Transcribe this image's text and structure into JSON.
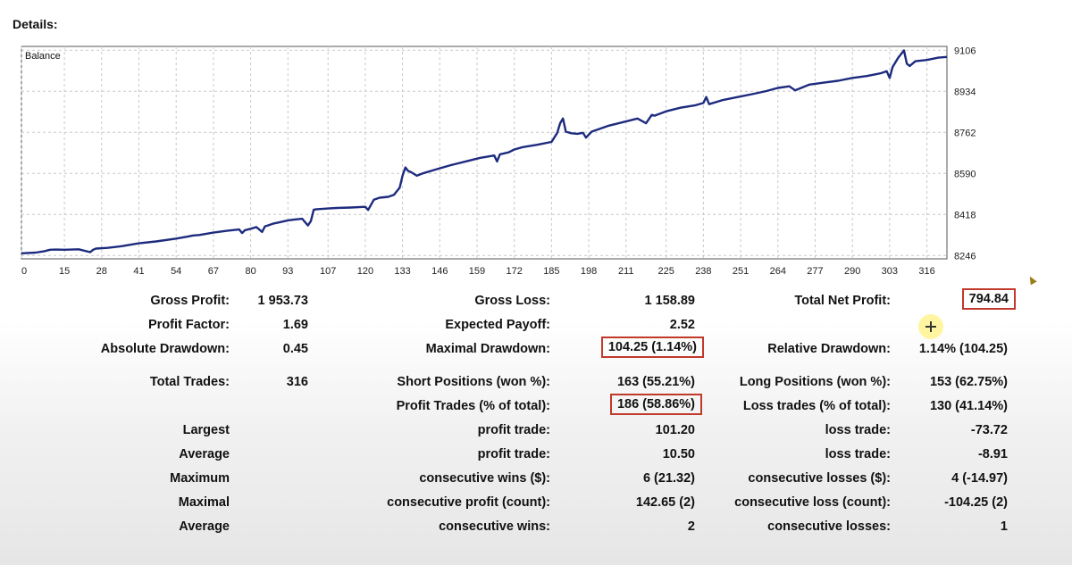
{
  "header": {
    "title": "Details:"
  },
  "chart_data": {
    "type": "line",
    "title": "Balance",
    "x_ticks": [
      0,
      15,
      28,
      41,
      54,
      67,
      80,
      93,
      107,
      120,
      133,
      146,
      159,
      172,
      185,
      198,
      211,
      225,
      238,
      251,
      264,
      277,
      290,
      303,
      316
    ],
    "y_ticks": [
      8246,
      8418,
      8590,
      8762,
      8934,
      9106
    ],
    "xlim": [
      0,
      323
    ],
    "ylim": [
      8232,
      9122
    ],
    "grid": true,
    "series": [
      {
        "color": "#1d2b7e",
        "x": [
          0,
          5,
          8,
          10,
          12,
          15,
          20,
          24,
          25,
          26,
          30,
          35,
          41,
          47,
          54,
          58,
          60,
          62,
          67,
          72,
          76,
          77,
          78,
          80,
          82,
          84,
          85,
          86,
          88,
          90,
          93,
          95,
          98,
          100,
          101,
          102,
          103,
          107,
          110,
          115,
          120,
          121,
          123,
          125,
          128,
          130,
          132,
          133,
          134,
          135,
          136,
          138,
          140,
          145,
          150,
          155,
          160,
          165,
          166,
          167,
          170,
          172,
          175,
          180,
          185,
          187,
          188,
          189,
          190,
          192,
          194,
          196,
          197,
          199,
          205,
          210,
          215,
          218,
          220,
          221,
          225,
          230,
          235,
          238,
          239,
          240,
          245,
          250,
          255,
          260,
          264,
          268,
          270,
          275,
          280,
          285,
          290,
          295,
          298,
          300,
          302,
          303,
          304,
          306,
          308,
          309,
          310,
          312,
          316,
          320,
          323
        ],
        "y": [
          8255,
          8258,
          8264,
          8270,
          8271,
          8270,
          8272,
          8260,
          8270,
          8275,
          8278,
          8285,
          8297,
          8305,
          8317,
          8325,
          8330,
          8332,
          8342,
          8350,
          8355,
          8340,
          8352,
          8358,
          8365,
          8345,
          8368,
          8372,
          8380,
          8385,
          8393,
          8396,
          8400,
          8372,
          8390,
          8438,
          8440,
          8443,
          8445,
          8447,
          8450,
          8437,
          8480,
          8488,
          8492,
          8500,
          8530,
          8580,
          8615,
          8600,
          8595,
          8580,
          8590,
          8608,
          8625,
          8640,
          8655,
          8665,
          8640,
          8670,
          8678,
          8690,
          8700,
          8710,
          8722,
          8760,
          8800,
          8820,
          8765,
          8758,
          8756,
          8760,
          8740,
          8765,
          8790,
          8805,
          8820,
          8800,
          8835,
          8832,
          8850,
          8865,
          8875,
          8885,
          8910,
          8880,
          8898,
          8910,
          8922,
          8935,
          8948,
          8955,
          8938,
          8962,
          8970,
          8978,
          8990,
          8998,
          9005,
          9010,
          9018,
          8990,
          9035,
          9075,
          9105,
          9050,
          9040,
          9060,
          9065,
          9075,
          9078
        ]
      }
    ]
  },
  "stats": {
    "gross_profit": {
      "label": "Gross Profit:",
      "value": "1 953.73"
    },
    "gross_loss": {
      "label": "Gross Loss:",
      "value": "1 158.89"
    },
    "total_net_profit": {
      "label": "Total Net Profit:",
      "value": "794.84"
    },
    "profit_factor": {
      "label": "Profit Factor:",
      "value": "1.69"
    },
    "expected_payoff": {
      "label": "Expected Payoff:",
      "value": "2.52"
    },
    "absolute_drawdown": {
      "label": "Absolute Drawdown:",
      "value": "0.45"
    },
    "maximal_drawdown": {
      "label": "Maximal Drawdown:",
      "value": "104.25 (1.14%)"
    },
    "relative_drawdown": {
      "label": "Relative Drawdown:",
      "value": "1.14% (104.25)"
    },
    "total_trades": {
      "label": "Total Trades:",
      "value": "316"
    },
    "short_positions": {
      "label": "Short Positions (won %):",
      "value": "163 (55.21%)"
    },
    "long_positions": {
      "label": "Long Positions (won %):",
      "value": "153 (62.75%)"
    },
    "profit_trades": {
      "label": "Profit Trades (% of total):",
      "value": "186 (58.86%)"
    },
    "loss_trades": {
      "label": "Loss trades (% of total):",
      "value": "130 (41.14%)"
    },
    "largest": {
      "group": "Largest",
      "profit_label": "profit trade:",
      "profit_value": "101.20",
      "loss_label": "loss trade:",
      "loss_value": "-73.72"
    },
    "average": {
      "group": "Average",
      "profit_label": "profit trade:",
      "profit_value": "10.50",
      "loss_label": "loss trade:",
      "loss_value": "-8.91"
    },
    "maximum": {
      "group": "Maximum",
      "profit_label": "consecutive wins ($):",
      "profit_value": "6 (21.32)",
      "loss_label": "consecutive losses ($):",
      "loss_value": "4 (-14.97)"
    },
    "maximal": {
      "group": "Maximal",
      "profit_label": "consecutive profit (count):",
      "profit_value": "142.65 (2)",
      "loss_label": "consecutive loss (count):",
      "loss_value": "-104.25 (2)"
    },
    "average_consec": {
      "group": "Average",
      "profit_label": "consecutive wins:",
      "profit_value": "2",
      "loss_label": "consecutive losses:",
      "loss_value": "1"
    }
  }
}
